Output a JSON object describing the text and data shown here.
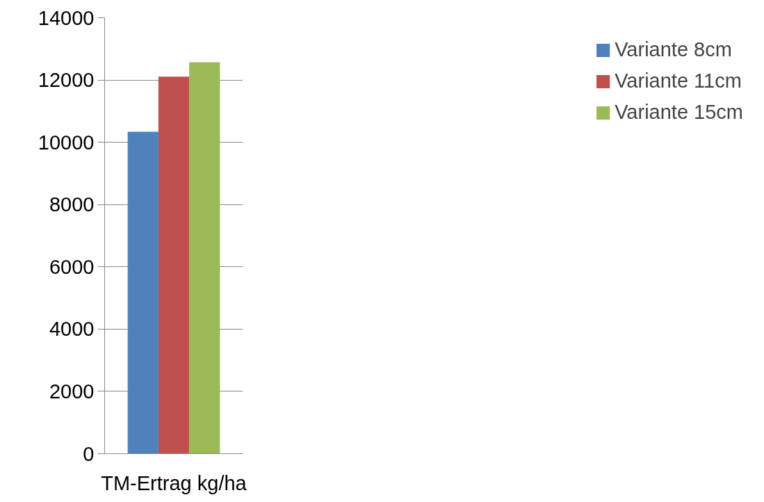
{
  "chart_data": {
    "type": "bar",
    "categories": [
      "TM-Ertrag kg/ha"
    ],
    "series": [
      {
        "name": "Variante 8cm",
        "color": "#4f81bd",
        "values": [
          10340
        ]
      },
      {
        "name": "Variante 11cm",
        "color": "#c0504d",
        "values": [
          12110
        ]
      },
      {
        "name": "Variante 15cm",
        "color": "#9bbb59",
        "values": [
          12570
        ]
      }
    ],
    "ylim": [
      0,
      14000
    ],
    "yticks": [
      0,
      2000,
      4000,
      6000,
      8000,
      10000,
      12000,
      14000
    ],
    "grid": "y",
    "legend": "right"
  }
}
